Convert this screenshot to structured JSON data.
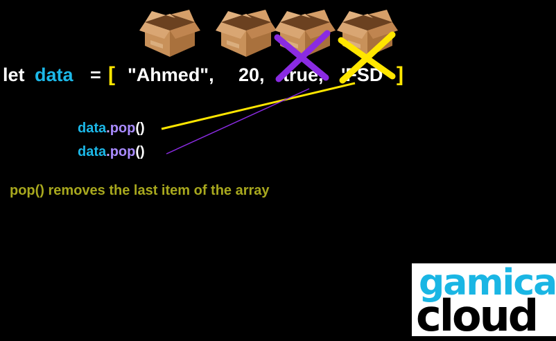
{
  "code_line": {
    "keyword": "let",
    "variable": "data",
    "equals": "=",
    "open_bracket": "[",
    "items": [
      "\"Ahmed\",",
      "20,",
      "true,",
      "'FSD'"
    ],
    "close_bracket": "]"
  },
  "calls": [
    {
      "object": "data",
      "dot": ".",
      "method": "pop",
      "parens": "()",
      "strike_color": "#ffe600",
      "removed_item": "'FSD'"
    },
    {
      "object": "data",
      "dot": ".",
      "method": "pop",
      "parens": "()",
      "strike_color": "#8a2be2",
      "removed_item": "true"
    }
  ],
  "note": "pop() removes the last item of the array",
  "logo": {
    "top": "gamica",
    "bottom": "cloud"
  },
  "colors": {
    "background": "#000000",
    "variable": "#1cb8e8",
    "bracket": "#ffe600",
    "note": "#a8a81e",
    "purple": "#8a2be2",
    "yellow": "#ffe600"
  },
  "icons": [
    "cardboard-box-icon",
    "cardboard-box-icon",
    "cardboard-box-icon",
    "cardboard-box-icon"
  ]
}
